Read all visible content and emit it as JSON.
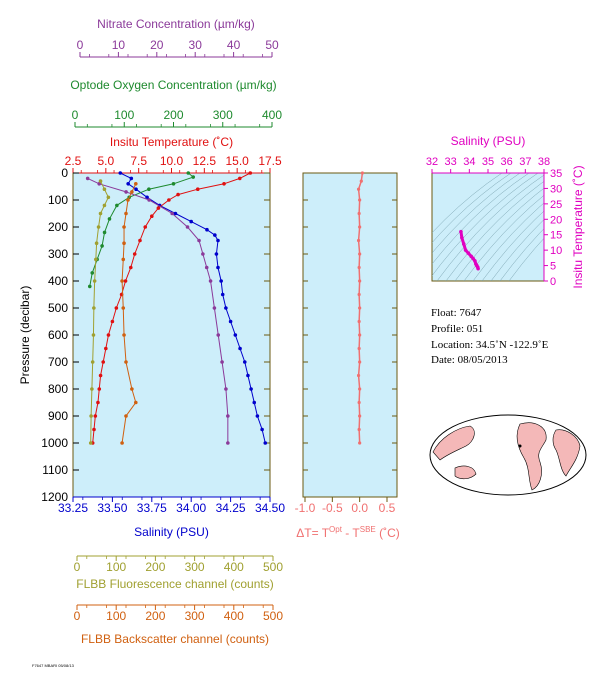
{
  "colors": {
    "nitrate": "#8b3a9a",
    "oxygen": "#1e8a2e",
    "temperature": "#e01010",
    "salinity": "#0000cc",
    "fluorescence": "#a0a030",
    "backscatter": "#d06010",
    "delta": "#f07070",
    "inset": "#e000c0",
    "panel_bg": "#cdeefa",
    "axis": "#6b5a10",
    "land": "#f4b8b8"
  },
  "labels": {
    "nitrate_title": "Nitrate Concentration (µm/kg)",
    "oxygen_title": "Optode Oxygen Concentration (µm/kg)",
    "temperature_title": "Insitu Temperature (˚C)",
    "pressure_title": "Pressure (decibar)",
    "salinity_title": "Salinity (PSU)",
    "delta_title": "ΔT= T",
    "delta_sup1": "Opt",
    "delta_mid": " - T",
    "delta_sup2": "SBE",
    "delta_end": " (˚C)",
    "fluor_title": "FLBB Fluorescence channel (counts)",
    "backscatter_title": "FLBB Backscatter channel (counts)",
    "inset_sal_title": "Salinity (PSU)",
    "inset_temp_title": "Insitu Temperature (˚C)",
    "footer": "F7647 MBARI 05/08/13"
  },
  "float_info": {
    "float": "Float:  7647",
    "profile": "Profile:  051",
    "location": "Location:  34.5˚N  -122.9˚E",
    "date": "Date:  08/05/2013"
  },
  "axes": {
    "nitrate_ticks": [
      "0",
      "10",
      "20",
      "30",
      "40",
      "50"
    ],
    "oxygen_ticks": [
      "0",
      "100",
      "200",
      "300",
      "400"
    ],
    "temperature_ticks": [
      "2.5",
      "5.0",
      "7.5",
      "10.0",
      "12.5",
      "15.0",
      "17.5"
    ],
    "pressure_ticks": [
      "0",
      "100",
      "200",
      "300",
      "400",
      "500",
      "600",
      "700",
      "800",
      "900",
      "1000",
      "1100",
      "1200"
    ],
    "salinity_ticks": [
      "33.25",
      "33.50",
      "33.75",
      "34.00",
      "34.25",
      "34.50"
    ],
    "delta_ticks": [
      "-1.0",
      "-0.5",
      "0.0",
      "0.5"
    ],
    "fluor_ticks": [
      "0",
      "100",
      "200",
      "300",
      "400",
      "500"
    ],
    "backscatter_ticks": [
      "0",
      "100",
      "200",
      "300",
      "400",
      "500"
    ],
    "inset_sal_ticks": [
      "32",
      "33",
      "34",
      "35",
      "36",
      "37",
      "38"
    ],
    "inset_temp_ticks": [
      "0",
      "5",
      "10",
      "15",
      "20",
      "25",
      "30",
      "35"
    ]
  },
  "chart_data": {
    "type": "line",
    "ylabel": "Pressure (decibar)",
    "ylim": [
      1200,
      0
    ],
    "ranges": {
      "salinity": [
        33.25,
        34.5
      ],
      "temperature": [
        2.5,
        17.5
      ],
      "oxygen": [
        0,
        400
      ],
      "nitrate": [
        0,
        50
      ],
      "fluorescence": [
        0,
        500
      ],
      "backscatter": [
        0,
        500
      ],
      "delta": [
        -1.0,
        0.5
      ]
    },
    "series": [
      {
        "name": "Salinity (PSU)",
        "key": "salinity",
        "points": [
          [
            33.55,
            0
          ],
          [
            33.62,
            20
          ],
          [
            33.6,
            40
          ],
          [
            33.65,
            60
          ],
          [
            33.72,
            90
          ],
          [
            33.8,
            120
          ],
          [
            33.9,
            150
          ],
          [
            34.0,
            180
          ],
          [
            34.1,
            210
          ],
          [
            34.15,
            230
          ],
          [
            34.17,
            250
          ],
          [
            34.16,
            300
          ],
          [
            34.17,
            350
          ],
          [
            34.19,
            400
          ],
          [
            34.2,
            450
          ],
          [
            34.22,
            500
          ],
          [
            34.25,
            550
          ],
          [
            34.28,
            600
          ],
          [
            34.31,
            650
          ],
          [
            34.34,
            700
          ],
          [
            34.36,
            750
          ],
          [
            34.38,
            800
          ],
          [
            34.4,
            850
          ],
          [
            34.42,
            900
          ],
          [
            34.45,
            950
          ],
          [
            34.47,
            1000
          ]
        ]
      },
      {
        "name": "Insitu Temperature (˚C)",
        "key": "temperature",
        "points": [
          [
            16.0,
            0
          ],
          [
            15.2,
            20
          ],
          [
            14.0,
            40
          ],
          [
            12.0,
            60
          ],
          [
            10.5,
            80
          ],
          [
            9.8,
            100
          ],
          [
            9.0,
            130
          ],
          [
            8.5,
            160
          ],
          [
            8.0,
            200
          ],
          [
            7.6,
            250
          ],
          [
            7.2,
            300
          ],
          [
            6.9,
            350
          ],
          [
            6.5,
            400
          ],
          [
            6.2,
            450
          ],
          [
            5.8,
            500
          ],
          [
            5.5,
            550
          ],
          [
            5.2,
            600
          ],
          [
            5.0,
            650
          ],
          [
            4.8,
            700
          ],
          [
            4.6,
            750
          ],
          [
            4.5,
            800
          ],
          [
            4.4,
            850
          ],
          [
            4.2,
            900
          ],
          [
            4.1,
            950
          ],
          [
            4.0,
            1000
          ]
        ]
      },
      {
        "name": "Optode Oxygen Concentration (µm/kg)",
        "key": "oxygen",
        "points": [
          [
            230,
            0
          ],
          [
            240,
            15
          ],
          [
            200,
            40
          ],
          [
            150,
            60
          ],
          [
            110,
            90
          ],
          [
            85,
            120
          ],
          [
            70,
            170
          ],
          [
            60,
            220
          ],
          [
            55,
            270
          ],
          [
            45,
            320
          ],
          [
            35,
            370
          ],
          [
            30,
            420
          ]
        ]
      },
      {
        "name": "Nitrate Concentration (µm/kg)",
        "key": "nitrate",
        "points": [
          [
            2,
            20
          ],
          [
            5,
            40
          ],
          [
            12,
            70
          ],
          [
            18,
            100
          ],
          [
            24,
            150
          ],
          [
            28,
            200
          ],
          [
            31,
            250
          ],
          [
            32,
            300
          ],
          [
            33,
            350
          ],
          [
            34,
            400
          ],
          [
            35,
            500
          ],
          [
            36,
            600
          ],
          [
            37,
            700
          ],
          [
            38,
            800
          ],
          [
            38.5,
            900
          ],
          [
            38.5,
            1000
          ]
        ]
      },
      {
        "name": "FLBB Fluorescence channel (counts)",
        "key": "fluorescence",
        "points": [
          [
            60,
            30
          ],
          [
            70,
            60
          ],
          [
            80,
            90
          ],
          [
            70,
            120
          ],
          [
            60,
            150
          ],
          [
            55,
            200
          ],
          [
            50,
            260
          ],
          [
            48,
            320
          ],
          [
            45,
            400
          ],
          [
            43,
            500
          ],
          [
            42,
            600
          ],
          [
            40,
            700
          ],
          [
            38,
            800
          ],
          [
            36,
            900
          ],
          [
            35,
            1000
          ]
        ]
      },
      {
        "name": "FLBB Backscatter channel (counts)",
        "key": "backscatter",
        "points": [
          [
            150,
            40
          ],
          [
            140,
            70
          ],
          [
            130,
            100
          ],
          [
            125,
            150
          ],
          [
            120,
            200
          ],
          [
            120,
            260
          ],
          [
            118,
            320
          ],
          [
            115,
            400
          ],
          [
            118,
            500
          ],
          [
            120,
            600
          ],
          [
            125,
            700
          ],
          [
            140,
            800
          ],
          [
            150,
            850
          ],
          [
            125,
            900
          ],
          [
            115,
            1000
          ]
        ]
      },
      {
        "name": "ΔT",
        "key": "delta",
        "points": [
          [
            0.05,
            0
          ],
          [
            0.03,
            30
          ],
          [
            -0.02,
            60
          ],
          [
            0.0,
            100
          ],
          [
            -0.01,
            150
          ],
          [
            0.0,
            200
          ],
          [
            -0.02,
            250
          ],
          [
            0.0,
            300
          ],
          [
            -0.01,
            350
          ],
          [
            0.0,
            400
          ],
          [
            -0.01,
            450
          ],
          [
            0.0,
            500
          ],
          [
            -0.01,
            550
          ],
          [
            0.0,
            600
          ],
          [
            -0.01,
            650
          ],
          [
            0.0,
            700
          ],
          [
            -0.02,
            750
          ],
          [
            0.0,
            800
          ],
          [
            -0.01,
            850
          ],
          [
            0.0,
            900
          ],
          [
            -0.01,
            950
          ],
          [
            0.0,
            1000
          ]
        ]
      }
    ],
    "inset": {
      "xlabel": "Salinity (PSU)",
      "ylabel": "Insitu Temperature (˚C)",
      "xlim": [
        32,
        38
      ],
      "ylim": [
        0,
        35
      ],
      "points": [
        [
          33.55,
          16
        ],
        [
          33.6,
          14
        ],
        [
          33.7,
          12
        ],
        [
          33.8,
          10
        ],
        [
          33.95,
          9
        ],
        [
          34.1,
          8
        ],
        [
          34.2,
          7.3
        ],
        [
          34.3,
          6.5
        ],
        [
          34.35,
          5.5
        ],
        [
          34.4,
          5
        ],
        [
          34.45,
          4.5
        ],
        [
          34.47,
          4
        ]
      ]
    }
  }
}
